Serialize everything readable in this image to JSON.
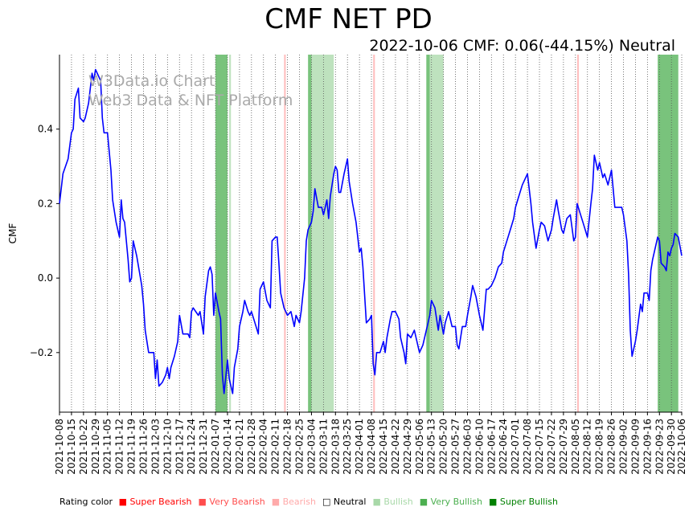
{
  "title": "CMF NET PD",
  "subtitle": "2022-10-06 CMF: 0.06(-44.15%) Neutral",
  "watermark": [
    "W3Data.io Chart",
    "Web3 Data & NFT Platform"
  ],
  "legend": {
    "label": "Rating color",
    "items": [
      {
        "text": "■ Super Bearish",
        "color": "#ff0000"
      },
      {
        "text": "■ Very Bearish",
        "color": "#ff4d4d"
      },
      {
        "text": "■ Bearish",
        "color": "#ffaaaa"
      },
      {
        "text": "□ Neutral",
        "color": "#000000"
      },
      {
        "text": "■ Bullish",
        "color": "#a8d8a8"
      },
      {
        "text": "■ Very Bullish",
        "color": "#4caf50"
      },
      {
        "text": "■ Super Bullish",
        "color": "#008000"
      }
    ]
  },
  "chart_data": {
    "type": "line",
    "title": "CMF NET PD",
    "ylabel": "CMF",
    "xlabel": "",
    "xlim": [
      "2021-10-08",
      "2022-10-06"
    ],
    "ylim": [
      -0.36,
      0.6
    ],
    "yticks": [
      -0.2,
      0.0,
      0.2,
      0.4
    ],
    "ytick_labels": [
      "−0.2",
      "0.0",
      "0.2",
      "0.4"
    ],
    "xticks": [
      "2021-10-08",
      "2021-10-15",
      "2021-10-22",
      "2021-10-29",
      "2021-11-05",
      "2021-11-12",
      "2021-11-19",
      "2021-11-26",
      "2021-12-03",
      "2021-12-10",
      "2021-12-17",
      "2021-12-24",
      "2021-12-31",
      "2022-01-07",
      "2022-01-14",
      "2022-01-21",
      "2022-01-28",
      "2022-02-04",
      "2022-02-11",
      "2022-02-18",
      "2022-02-25",
      "2022-03-04",
      "2022-03-11",
      "2022-03-18",
      "2022-03-25",
      "2022-04-01",
      "2022-04-08",
      "2022-04-15",
      "2022-04-22",
      "2022-04-29",
      "2022-05-06",
      "2022-05-13",
      "2022-05-20",
      "2022-05-27",
      "2022-06-03",
      "2022-06-10",
      "2022-06-17",
      "2022-06-24",
      "2022-07-01",
      "2022-07-08",
      "2022-07-15",
      "2022-07-22",
      "2022-07-29",
      "2022-08-05",
      "2022-08-12",
      "2022-08-19",
      "2022-08-26",
      "2022-09-02",
      "2022-09-09",
      "2022-09-16",
      "2022-09-23",
      "2022-09-30",
      "2022-10-06"
    ],
    "grid": "vertical dotted",
    "series": [
      {
        "color": "#0000ff",
        "points": [
          [
            "2021-10-08",
            0.2
          ],
          [
            "2021-10-10",
            0.28
          ],
          [
            "2021-10-13",
            0.32
          ],
          [
            "2021-10-15",
            0.39
          ],
          [
            "2021-10-16",
            0.4
          ],
          [
            "2021-10-17",
            0.48
          ],
          [
            "2021-10-19",
            0.51
          ],
          [
            "2021-10-20",
            0.43
          ],
          [
            "2021-10-22",
            0.42
          ],
          [
            "2021-10-23",
            0.43
          ],
          [
            "2021-10-25",
            0.47
          ],
          [
            "2021-10-27",
            0.55
          ],
          [
            "2021-10-28",
            0.53
          ],
          [
            "2021-10-29",
            0.56
          ],
          [
            "2021-11-01",
            0.53
          ],
          [
            "2021-11-02",
            0.43
          ],
          [
            "2021-11-03",
            0.39
          ],
          [
            "2021-11-05",
            0.39
          ],
          [
            "2021-11-07",
            0.29
          ],
          [
            "2021-11-08",
            0.21
          ],
          [
            "2021-11-10",
            0.15
          ],
          [
            "2021-11-12",
            0.11
          ],
          [
            "2021-11-13",
            0.21
          ],
          [
            "2021-11-14",
            0.16
          ],
          [
            "2021-11-15",
            0.15
          ],
          [
            "2021-11-17",
            0.05
          ],
          [
            "2021-11-18",
            -0.01
          ],
          [
            "2021-11-19",
            0.0
          ],
          [
            "2021-11-20",
            0.1
          ],
          [
            "2021-11-22",
            0.06
          ],
          [
            "2021-11-25",
            -0.02
          ],
          [
            "2021-11-26",
            -0.07
          ],
          [
            "2021-11-27",
            -0.14
          ],
          [
            "2021-11-29",
            -0.2
          ],
          [
            "2021-12-01",
            -0.2
          ],
          [
            "2021-12-02",
            -0.2
          ],
          [
            "2021-12-03",
            -0.27
          ],
          [
            "2021-12-04",
            -0.22
          ],
          [
            "2021-12-05",
            -0.29
          ],
          [
            "2021-12-07",
            -0.28
          ],
          [
            "2021-12-09",
            -0.26
          ],
          [
            "2021-12-10",
            -0.24
          ],
          [
            "2021-12-11",
            -0.27
          ],
          [
            "2021-12-12",
            -0.24
          ],
          [
            "2021-12-14",
            -0.21
          ],
          [
            "2021-12-16",
            -0.17
          ],
          [
            "2021-12-17",
            -0.1
          ],
          [
            "2021-12-19",
            -0.15
          ],
          [
            "2021-12-22",
            -0.15
          ],
          [
            "2021-12-23",
            -0.16
          ],
          [
            "2021-12-24",
            -0.09
          ],
          [
            "2021-12-25",
            -0.08
          ],
          [
            "2021-12-28",
            -0.1
          ],
          [
            "2021-12-29",
            -0.09
          ],
          [
            "2021-12-31",
            -0.15
          ],
          [
            "2022-01-01",
            -0.05
          ],
          [
            "2022-01-03",
            0.02
          ],
          [
            "2022-01-04",
            0.03
          ],
          [
            "2022-01-05",
            0.01
          ],
          [
            "2022-01-06",
            -0.1
          ],
          [
            "2022-01-07",
            -0.04
          ],
          [
            "2022-01-09",
            -0.09
          ],
          [
            "2022-01-10",
            -0.11
          ],
          [
            "2022-01-11",
            -0.26
          ],
          [
            "2022-01-12",
            -0.31
          ],
          [
            "2022-01-14",
            -0.22
          ],
          [
            "2022-01-15",
            -0.27
          ],
          [
            "2022-01-17",
            -0.31
          ],
          [
            "2022-01-18",
            -0.24
          ],
          [
            "2022-01-20",
            -0.19
          ],
          [
            "2022-01-21",
            -0.13
          ],
          [
            "2022-01-23",
            -0.09
          ],
          [
            "2022-01-24",
            -0.06
          ],
          [
            "2022-01-26",
            -0.09
          ],
          [
            "2022-01-27",
            -0.1
          ],
          [
            "2022-01-28",
            -0.09
          ],
          [
            "2022-01-30",
            -0.12
          ],
          [
            "2022-02-01",
            -0.15
          ],
          [
            "2022-02-02",
            -0.03
          ],
          [
            "2022-02-04",
            -0.01
          ],
          [
            "2022-02-06",
            -0.06
          ],
          [
            "2022-02-08",
            -0.08
          ],
          [
            "2022-02-09",
            0.1
          ],
          [
            "2022-02-11",
            0.11
          ],
          [
            "2022-02-12",
            0.11
          ],
          [
            "2022-02-13",
            0.04
          ],
          [
            "2022-02-14",
            -0.04
          ],
          [
            "2022-02-16",
            -0.08
          ],
          [
            "2022-02-18",
            -0.1
          ],
          [
            "2022-02-20",
            -0.09
          ],
          [
            "2022-02-22",
            -0.13
          ],
          [
            "2022-02-23",
            -0.1
          ],
          [
            "2022-02-25",
            -0.12
          ],
          [
            "2022-02-26",
            -0.09
          ],
          [
            "2022-02-28",
            0.0
          ],
          [
            "2022-03-01",
            0.1
          ],
          [
            "2022-03-02",
            0.13
          ],
          [
            "2022-03-04",
            0.15
          ],
          [
            "2022-03-05",
            0.18
          ],
          [
            "2022-03-06",
            0.24
          ],
          [
            "2022-03-08",
            0.19
          ],
          [
            "2022-03-10",
            0.19
          ],
          [
            "2022-03-11",
            0.17
          ],
          [
            "2022-03-13",
            0.21
          ],
          [
            "2022-03-14",
            0.16
          ],
          [
            "2022-03-15",
            0.22
          ],
          [
            "2022-03-17",
            0.28
          ],
          [
            "2022-03-18",
            0.3
          ],
          [
            "2022-03-19",
            0.29
          ],
          [
            "2022-03-20",
            0.23
          ],
          [
            "2022-03-21",
            0.23
          ],
          [
            "2022-03-23",
            0.28
          ],
          [
            "2022-03-25",
            0.32
          ],
          [
            "2022-03-26",
            0.26
          ],
          [
            "2022-03-28",
            0.2
          ],
          [
            "2022-03-30",
            0.15
          ],
          [
            "2022-03-31",
            0.11
          ],
          [
            "2022-04-01",
            0.07
          ],
          [
            "2022-04-02",
            0.08
          ],
          [
            "2022-04-03",
            0.03
          ],
          [
            "2022-04-05",
            -0.12
          ],
          [
            "2022-04-07",
            -0.11
          ],
          [
            "2022-04-08",
            -0.1
          ],
          [
            "2022-04-09",
            -0.23
          ],
          [
            "2022-04-10",
            -0.26
          ],
          [
            "2022-04-11",
            -0.2
          ],
          [
            "2022-04-13",
            -0.2
          ],
          [
            "2022-04-15",
            -0.17
          ],
          [
            "2022-04-16",
            -0.2
          ],
          [
            "2022-04-17",
            -0.16
          ],
          [
            "2022-04-19",
            -0.11
          ],
          [
            "2022-04-20",
            -0.09
          ],
          [
            "2022-04-22",
            -0.09
          ],
          [
            "2022-04-24",
            -0.11
          ],
          [
            "2022-04-25",
            -0.16
          ],
          [
            "2022-04-27",
            -0.2
          ],
          [
            "2022-04-28",
            -0.23
          ],
          [
            "2022-04-29",
            -0.15
          ],
          [
            "2022-05-01",
            -0.16
          ],
          [
            "2022-05-03",
            -0.14
          ],
          [
            "2022-05-06",
            -0.2
          ],
          [
            "2022-05-08",
            -0.18
          ],
          [
            "2022-05-10",
            -0.14
          ],
          [
            "2022-05-12",
            -0.1
          ],
          [
            "2022-05-13",
            -0.06
          ],
          [
            "2022-05-15",
            -0.08
          ],
          [
            "2022-05-17",
            -0.14
          ],
          [
            "2022-05-18",
            -0.1
          ],
          [
            "2022-05-20",
            -0.15
          ],
          [
            "2022-05-21",
            -0.12
          ],
          [
            "2022-05-23",
            -0.09
          ],
          [
            "2022-05-25",
            -0.13
          ],
          [
            "2022-05-27",
            -0.13
          ],
          [
            "2022-05-28",
            -0.18
          ],
          [
            "2022-05-29",
            -0.19
          ],
          [
            "2022-05-31",
            -0.13
          ],
          [
            "2022-06-02",
            -0.13
          ],
          [
            "2022-06-03",
            -0.1
          ],
          [
            "2022-06-05",
            -0.05
          ],
          [
            "2022-06-06",
            -0.02
          ],
          [
            "2022-06-08",
            -0.05
          ],
          [
            "2022-06-10",
            -0.1
          ],
          [
            "2022-06-12",
            -0.14
          ],
          [
            "2022-06-14",
            -0.03
          ],
          [
            "2022-06-15",
            -0.03
          ],
          [
            "2022-06-17",
            -0.02
          ],
          [
            "2022-06-19",
            0.0
          ],
          [
            "2022-06-21",
            0.03
          ],
          [
            "2022-06-23",
            0.04
          ],
          [
            "2022-06-24",
            0.07
          ],
          [
            "2022-06-26",
            0.1
          ],
          [
            "2022-06-28",
            0.13
          ],
          [
            "2022-06-30",
            0.16
          ],
          [
            "2022-07-01",
            0.19
          ],
          [
            "2022-07-03",
            0.22
          ],
          [
            "2022-07-05",
            0.25
          ],
          [
            "2022-07-08",
            0.28
          ],
          [
            "2022-07-10",
            0.2
          ],
          [
            "2022-07-11",
            0.15
          ],
          [
            "2022-07-13",
            0.08
          ],
          [
            "2022-07-15",
            0.13
          ],
          [
            "2022-07-16",
            0.15
          ],
          [
            "2022-07-18",
            0.14
          ],
          [
            "2022-07-20",
            0.1
          ],
          [
            "2022-07-22",
            0.13
          ],
          [
            "2022-07-23",
            0.16
          ],
          [
            "2022-07-25",
            0.21
          ],
          [
            "2022-07-26",
            0.18
          ],
          [
            "2022-07-28",
            0.13
          ],
          [
            "2022-07-29",
            0.12
          ],
          [
            "2022-07-31",
            0.16
          ],
          [
            "2022-08-02",
            0.17
          ],
          [
            "2022-08-04",
            0.1
          ],
          [
            "2022-08-05",
            0.11
          ],
          [
            "2022-08-06",
            0.2
          ],
          [
            "2022-08-08",
            0.17
          ],
          [
            "2022-08-10",
            0.14
          ],
          [
            "2022-08-12",
            0.11
          ],
          [
            "2022-08-14",
            0.2
          ],
          [
            "2022-08-15",
            0.24
          ],
          [
            "2022-08-16",
            0.33
          ],
          [
            "2022-08-18",
            0.29
          ],
          [
            "2022-08-19",
            0.31
          ],
          [
            "2022-08-21",
            0.27
          ],
          [
            "2022-08-22",
            0.28
          ],
          [
            "2022-08-24",
            0.25
          ],
          [
            "2022-08-26",
            0.29
          ],
          [
            "2022-08-28",
            0.19
          ],
          [
            "2022-08-30",
            0.19
          ],
          [
            "2022-09-01",
            0.19
          ],
          [
            "2022-09-02",
            0.17
          ],
          [
            "2022-09-04",
            0.1
          ],
          [
            "2022-09-05",
            0.01
          ],
          [
            "2022-09-06",
            -0.14
          ],
          [
            "2022-09-07",
            -0.21
          ],
          [
            "2022-09-09",
            -0.17
          ],
          [
            "2022-09-10",
            -0.14
          ],
          [
            "2022-09-12",
            -0.07
          ],
          [
            "2022-09-13",
            -0.09
          ],
          [
            "2022-09-14",
            -0.04
          ],
          [
            "2022-09-16",
            -0.04
          ],
          [
            "2022-09-17",
            -0.06
          ],
          [
            "2022-09-18",
            0.02
          ],
          [
            "2022-09-19",
            0.05
          ],
          [
            "2022-09-20",
            0.07
          ],
          [
            "2022-09-22",
            0.11
          ],
          [
            "2022-09-23",
            0.1
          ],
          [
            "2022-09-24",
            0.04
          ],
          [
            "2022-09-26",
            0.03
          ],
          [
            "2022-09-27",
            0.02
          ],
          [
            "2022-09-28",
            0.07
          ],
          [
            "2022-09-29",
            0.06
          ],
          [
            "2022-09-30",
            0.08
          ],
          [
            "2022-10-01",
            0.09
          ],
          [
            "2022-10-02",
            0.12
          ],
          [
            "2022-10-04",
            0.11
          ],
          [
            "2022-10-06",
            0.06
          ]
        ]
      }
    ],
    "bands": [
      {
        "start": "2022-01-07",
        "end": "2022-01-14",
        "color": "#4caf50"
      },
      {
        "start": "2022-01-15",
        "end": "2022-01-16",
        "color": "#a8d8a8"
      },
      {
        "start": "2022-02-16",
        "end": "2022-02-17",
        "color": "#ffaaaa"
      },
      {
        "start": "2022-03-02",
        "end": "2022-03-04",
        "color": "#4caf50"
      },
      {
        "start": "2022-03-04",
        "end": "2022-03-17",
        "color": "#a8d8a8"
      },
      {
        "start": "2022-04-09",
        "end": "2022-04-10",
        "color": "#ffaaaa"
      },
      {
        "start": "2022-05-10",
        "end": "2022-05-12",
        "color": "#4caf50"
      },
      {
        "start": "2022-05-12",
        "end": "2022-05-20",
        "color": "#a8d8a8"
      },
      {
        "start": "2022-08-06",
        "end": "2022-08-07",
        "color": "#ffaaaa"
      },
      {
        "start": "2022-09-22",
        "end": "2022-10-04",
        "color": "#4caf50"
      }
    ]
  }
}
